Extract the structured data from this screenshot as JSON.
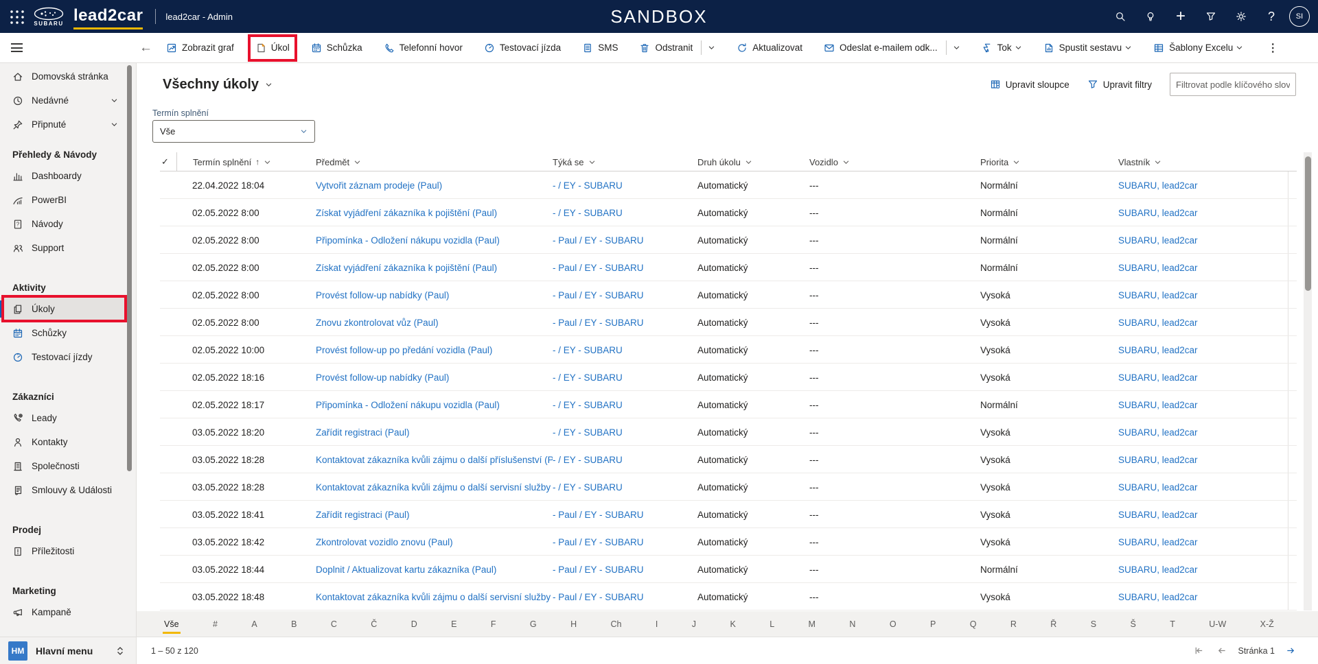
{
  "colors": {
    "topbar_bg": "#0c2146",
    "accent_blue": "#1160b7",
    "command_icon_blue": "#1b66b5",
    "link_blue": "#2272c4",
    "highlight_red": "#e8112d",
    "gold_underline": "#f2b800"
  },
  "topbar": {
    "brand": "lead2car",
    "logo_text": "SUBARU",
    "app_label": "lead2car - Admin",
    "environment": "SANDBOX",
    "icons": [
      "search-icon",
      "lightbulb-icon",
      "plus-icon",
      "filter-icon",
      "gear-icon",
      "help-icon"
    ],
    "plus_glyph": "+",
    "help_glyph": "?",
    "avatar_initials": "SI"
  },
  "command_bar": {
    "back_glyph": "←",
    "more_glyph": "⋮",
    "items": [
      {
        "name": "show-chart",
        "icon": "chart",
        "label": "Zobrazit graf"
      },
      {
        "name": "task",
        "icon": "task",
        "label": "Úkol",
        "highlighted": true
      },
      {
        "name": "meeting",
        "icon": "calendar",
        "label": "Schůzka"
      },
      {
        "name": "phone-call",
        "icon": "phone",
        "label": "Telefonní hovor"
      },
      {
        "name": "test-drive",
        "icon": "gauge",
        "label": "Testovací jízda"
      },
      {
        "name": "sms",
        "icon": "sms",
        "label": "SMS"
      },
      {
        "name": "delete",
        "icon": "trash",
        "label": "Odstranit",
        "divider": true,
        "chevron": true
      },
      {
        "name": "refresh",
        "icon": "refresh",
        "label": "Aktualizovat"
      },
      {
        "name": "email-link",
        "icon": "email",
        "label": "Odeslat e-mailem odk...",
        "divider": true,
        "chevron": true
      },
      {
        "name": "flow",
        "icon": "flow",
        "label": "Tok",
        "chevron": true
      },
      {
        "name": "run-report",
        "icon": "report",
        "label": "Spustit sestavu",
        "chevron": true
      },
      {
        "name": "excel-templates",
        "icon": "excel",
        "label": "Šablony Excelu",
        "chevron": true
      }
    ]
  },
  "sidebar": {
    "sections": [
      {
        "items": [
          {
            "name": "home",
            "icon": "home",
            "label": "Domovská stránka"
          },
          {
            "name": "recent",
            "icon": "clock",
            "label": "Nedávné",
            "chevron": true
          },
          {
            "name": "pinned",
            "icon": "pin",
            "label": "Připnuté",
            "chevron": true
          }
        ]
      },
      {
        "header": "Přehledy & Návody",
        "items": [
          {
            "name": "dashboards",
            "icon": "dashboard",
            "label": "Dashboardy"
          },
          {
            "name": "powerbi",
            "icon": "powerbi",
            "label": "PowerBI"
          },
          {
            "name": "guides",
            "icon": "guide",
            "label": "Návody"
          },
          {
            "name": "support",
            "icon": "support",
            "label": "Support"
          }
        ]
      },
      {
        "header": "Aktivity",
        "items": [
          {
            "name": "tasks",
            "icon": "tasks",
            "label": "Úkoly",
            "selected": true,
            "highlighted": true
          },
          {
            "name": "meetings",
            "icon": "calendar",
            "label": "Schůzky"
          },
          {
            "name": "test-drives",
            "icon": "gauge",
            "label": "Testovací jízdy"
          }
        ]
      },
      {
        "header": "Zákazníci",
        "items": [
          {
            "name": "leads",
            "icon": "lead",
            "label": "Leady"
          },
          {
            "name": "contacts",
            "icon": "person",
            "label": "Kontakty"
          },
          {
            "name": "companies",
            "icon": "company",
            "label": "Společnosti"
          },
          {
            "name": "contracts",
            "icon": "contract",
            "label": "Smlouvy & Události"
          }
        ]
      },
      {
        "header": "Prodej",
        "items": [
          {
            "name": "opportunities",
            "icon": "opportunity",
            "label": "Příležitosti"
          }
        ]
      },
      {
        "header": "Marketing",
        "items": [
          {
            "name": "campaigns",
            "icon": "megaphone",
            "label": "Kampaně"
          }
        ]
      }
    ],
    "footer": {
      "initials": "HM",
      "label": "Hlavní menu"
    }
  },
  "view": {
    "title": "Všechny úkoly",
    "edit_columns": "Upravit sloupce",
    "edit_filters": "Upravit filtry",
    "search_placeholder": "Filtrovat podle klíčového slova"
  },
  "filter": {
    "label": "Termín splnění",
    "value": "Vše"
  },
  "grid": {
    "check_glyph": "✓",
    "sort_asc_glyph": "↑",
    "columns": [
      {
        "key": "due",
        "label": "Termín splnění",
        "sorted": "asc"
      },
      {
        "key": "subject",
        "label": "Předmět"
      },
      {
        "key": "regarding",
        "label": "Týká se"
      },
      {
        "key": "type",
        "label": "Druh úkolu"
      },
      {
        "key": "vehicle",
        "label": "Vozidlo"
      },
      {
        "key": "priority",
        "label": "Priorita"
      },
      {
        "key": "owner",
        "label": "Vlastník"
      }
    ],
    "rows": [
      {
        "due": "22.04.2022 18:04",
        "subject": "Vytvořit záznam prodeje (Paul)",
        "regarding": "-  / EY - SUBARU",
        "type": "Automatický",
        "vehicle": "---",
        "priority": "Normální",
        "owner": "SUBARU, lead2car"
      },
      {
        "due": "02.05.2022 8:00",
        "subject": "Získat vyjádření zákazníka k pojištění (Paul)",
        "regarding": "-  / EY - SUBARU",
        "type": "Automatický",
        "vehicle": "---",
        "priority": "Normální",
        "owner": "SUBARU, lead2car"
      },
      {
        "due": "02.05.2022 8:00",
        "subject": "Připomínka - Odložení nákupu vozidla (Paul)",
        "regarding": "- Paul / EY - SUBARU",
        "type": "Automatický",
        "vehicle": "---",
        "priority": "Normální",
        "owner": "SUBARU, lead2car"
      },
      {
        "due": "02.05.2022 8:00",
        "subject": "Získat vyjádření zákazníka k pojištění (Paul)",
        "regarding": "- Paul / EY - SUBARU",
        "type": "Automatický",
        "vehicle": "---",
        "priority": "Normální",
        "owner": "SUBARU, lead2car"
      },
      {
        "due": "02.05.2022 8:00",
        "subject": "Provést follow-up nabídky (Paul)",
        "regarding": "- Paul / EY - SUBARU",
        "type": "Automatický",
        "vehicle": "---",
        "priority": "Vysoká",
        "owner": "SUBARU, lead2car"
      },
      {
        "due": "02.05.2022 8:00",
        "subject": "Znovu zkontrolovat vůz (Paul)",
        "regarding": "- Paul / EY - SUBARU",
        "type": "Automatický",
        "vehicle": "---",
        "priority": "Vysoká",
        "owner": "SUBARU, lead2car"
      },
      {
        "due": "02.05.2022 10:00",
        "subject": "Provést follow-up po předání vozidla (Paul)",
        "regarding": "-  / EY - SUBARU",
        "type": "Automatický",
        "vehicle": "---",
        "priority": "Vysoká",
        "owner": "SUBARU, lead2car"
      },
      {
        "due": "02.05.2022 18:16",
        "subject": "Provést follow-up nabídky (Paul)",
        "regarding": "-  / EY - SUBARU",
        "type": "Automatický",
        "vehicle": "---",
        "priority": "Vysoká",
        "owner": "SUBARU, lead2car"
      },
      {
        "due": "02.05.2022 18:17",
        "subject": "Připomínka - Odložení nákupu vozidla (Paul)",
        "regarding": "-  / EY - SUBARU",
        "type": "Automatický",
        "vehicle": "---",
        "priority": "Normální",
        "owner": "SUBARU, lead2car"
      },
      {
        "due": "03.05.2022 18:20",
        "subject": "Zařídit registraci (Paul)",
        "regarding": "-  / EY - SUBARU",
        "type": "Automatický",
        "vehicle": "---",
        "priority": "Vysoká",
        "owner": "SUBARU, lead2car"
      },
      {
        "due": "03.05.2022 18:28",
        "subject": "Kontaktovat zákazníka kvůli zájmu o další příslušenství (P",
        "regarding": "-  / EY - SUBARU",
        "type": "Automatický",
        "vehicle": "---",
        "priority": "Vysoká",
        "owner": "SUBARU, lead2car"
      },
      {
        "due": "03.05.2022 18:28",
        "subject": "Kontaktovat zákazníka kvůli zájmu o další servisní služby",
        "regarding": "-  / EY - SUBARU",
        "type": "Automatický",
        "vehicle": "---",
        "priority": "Vysoká",
        "owner": "SUBARU, lead2car"
      },
      {
        "due": "03.05.2022 18:41",
        "subject": "Zařídit registraci (Paul)",
        "regarding": "- Paul / EY - SUBARU",
        "type": "Automatický",
        "vehicle": "---",
        "priority": "Vysoká",
        "owner": "SUBARU, lead2car"
      },
      {
        "due": "03.05.2022 18:42",
        "subject": "Zkontrolovat vozidlo znovu (Paul)",
        "regarding": "- Paul / EY - SUBARU",
        "type": "Automatický",
        "vehicle": "---",
        "priority": "Vysoká",
        "owner": "SUBARU, lead2car"
      },
      {
        "due": "03.05.2022 18:44",
        "subject": "Doplnit / Aktualizovat kartu zákazníka (Paul)",
        "regarding": "- Paul / EY - SUBARU",
        "type": "Automatický",
        "vehicle": "---",
        "priority": "Normální",
        "owner": "SUBARU, lead2car"
      },
      {
        "due": "03.05.2022 18:48",
        "subject": "Kontaktovat zákazníka kvůli zájmu o další servisní služby",
        "regarding": "- Paul / EY - SUBARU",
        "type": "Automatický",
        "vehicle": "---",
        "priority": "Vysoká",
        "owner": "SUBARU, lead2car"
      }
    ]
  },
  "jump_bar": [
    "Vše",
    "#",
    "A",
    "B",
    "C",
    "Č",
    "D",
    "E",
    "F",
    "G",
    "H",
    "Ch",
    "I",
    "J",
    "K",
    "L",
    "M",
    "N",
    "O",
    "P",
    "Q",
    "R",
    "Ř",
    "S",
    "Š",
    "T",
    "U-W",
    "X-Ž"
  ],
  "status_bar": {
    "records": "1 – 50 z 120",
    "page_label": "Stránka 1"
  }
}
